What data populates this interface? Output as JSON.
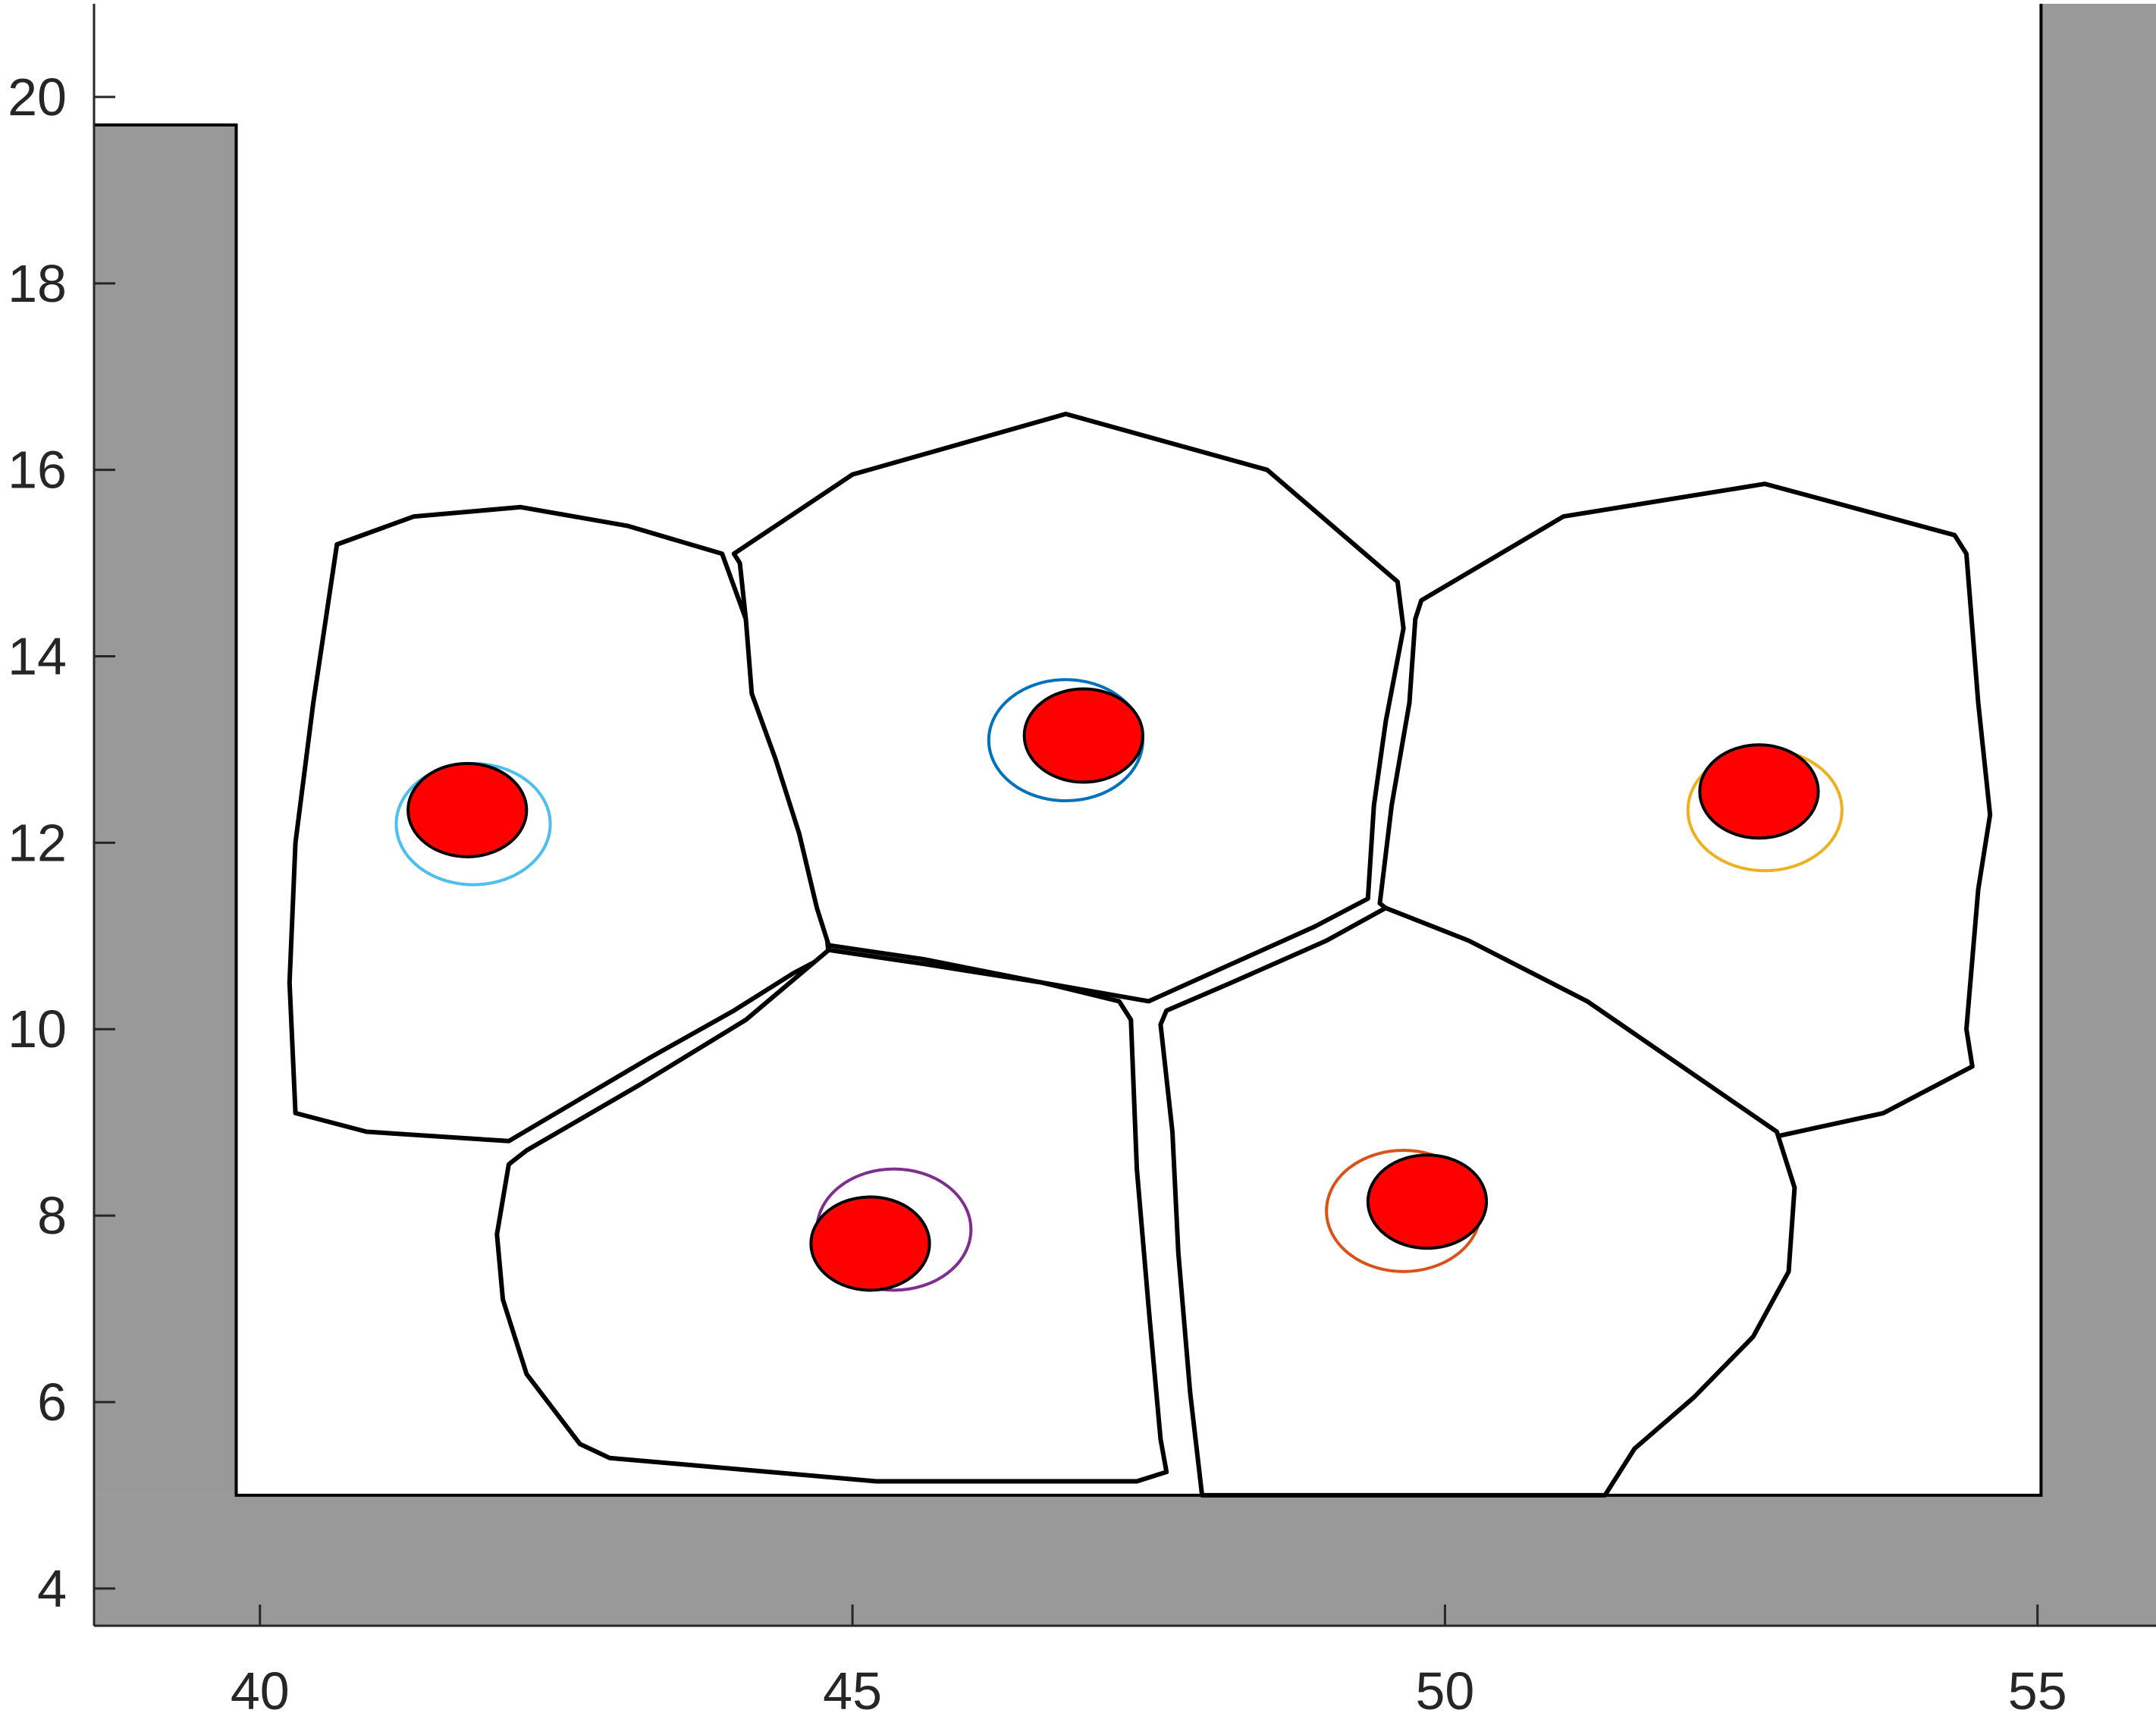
{
  "chart_data": {
    "type": "scatter",
    "title": "",
    "xlabel": "",
    "ylabel": "",
    "xlim": [
      38.6,
      56
    ],
    "ylim": [
      3.6,
      21
    ],
    "xticks": [
      40,
      45,
      50,
      55
    ],
    "xtick_labels": [
      "40",
      "45",
      "50",
      "55"
    ],
    "yticks": [
      4,
      6,
      8,
      10,
      12,
      14,
      16,
      18,
      20
    ],
    "ytick_labels": [
      "4",
      "6",
      "8",
      "10",
      "12",
      "14",
      "16",
      "18",
      "20"
    ],
    "grid": false,
    "colors": {
      "container": "#999999",
      "nucleus": "#ff0000",
      "outline": "#000000",
      "axis": "#262626"
    },
    "container": {
      "left_wall": [
        [
          38.6,
          3.6
        ],
        [
          38.6,
          19.7
        ],
        [
          39.8,
          19.7
        ],
        [
          39.8,
          5.0
        ],
        [
          38.6,
          5.0
        ]
      ],
      "right_wall": [
        [
          55.03,
          21.0
        ],
        [
          56.0,
          21.0
        ],
        [
          56.0,
          3.6
        ],
        [
          55.03,
          3.6
        ]
      ],
      "floor": [
        [
          38.6,
          3.6
        ],
        [
          56.0,
          3.6
        ],
        [
          56.0,
          5.0
        ],
        [
          38.6,
          5.0
        ]
      ]
    },
    "cells": [
      {
        "name": "top-left cell",
        "outline": [
          [
            41.3,
            15.5
          ],
          [
            42.2,
            15.6
          ],
          [
            43.1,
            15.4
          ],
          [
            43.9,
            15.1
          ],
          [
            44.1,
            14.4
          ],
          [
            44.2,
            13.6
          ],
          [
            44.4,
            12.9
          ],
          [
            44.6,
            12.1
          ],
          [
            44.75,
            11.4
          ],
          [
            44.8,
            10.8
          ],
          [
            44.5,
            10.6
          ],
          [
            44.0,
            10.2
          ],
          [
            43.3,
            9.7
          ],
          [
            42.1,
            8.8
          ],
          [
            40.9,
            8.9
          ],
          [
            40.3,
            9.1
          ],
          [
            40.25,
            10.5
          ],
          [
            40.3,
            12.0
          ],
          [
            40.45,
            13.5
          ],
          [
            40.65,
            15.2
          ]
        ],
        "nucleus": {
          "x": 41.75,
          "y": 12.35,
          "rx": 0.5,
          "ry": 0.5
        },
        "ring": {
          "x": 41.8,
          "y": 12.2,
          "rx": 0.65,
          "ry": 0.65,
          "color": "#4dbeee"
        }
      },
      {
        "name": "top-center cell",
        "outline": [
          [
            44.0,
            15.1
          ],
          [
            45.0,
            15.95
          ],
          [
            46.8,
            16.6
          ],
          [
            48.5,
            16.0
          ],
          [
            49.6,
            14.8
          ],
          [
            49.65,
            14.3
          ],
          [
            49.5,
            13.3
          ],
          [
            49.4,
            12.4
          ],
          [
            49.35,
            11.4
          ],
          [
            48.9,
            11.1
          ],
          [
            48.2,
            10.7
          ],
          [
            47.5,
            10.3
          ],
          [
            46.6,
            10.5
          ],
          [
            45.6,
            10.75
          ],
          [
            44.8,
            10.9
          ],
          [
            44.7,
            11.3
          ],
          [
            44.55,
            12.1
          ],
          [
            44.35,
            12.9
          ],
          [
            44.15,
            13.6
          ],
          [
            44.1,
            14.4
          ],
          [
            44.05,
            15.0
          ]
        ],
        "nucleus": {
          "x": 46.95,
          "y": 13.15,
          "rx": 0.5,
          "ry": 0.5
        },
        "ring": {
          "x": 46.8,
          "y": 13.1,
          "rx": 0.65,
          "ry": 0.65,
          "color": "#0072bd"
        }
      },
      {
        "name": "top-right cell",
        "outline": [
          [
            49.8,
            14.6
          ],
          [
            51.0,
            15.5
          ],
          [
            52.7,
            15.85
          ],
          [
            54.3,
            15.3
          ],
          [
            54.4,
            15.1
          ],
          [
            54.5,
            13.5
          ],
          [
            54.6,
            12.3
          ],
          [
            54.5,
            11.5
          ],
          [
            54.4,
            10.0
          ],
          [
            54.45,
            9.6
          ],
          [
            53.7,
            9.1
          ],
          [
            52.8,
            8.85
          ],
          [
            51.9,
            9.4
          ],
          [
            51.0,
            10.0
          ],
          [
            50.2,
            10.6
          ],
          [
            49.45,
            11.35
          ],
          [
            49.55,
            12.4
          ],
          [
            49.7,
            13.5
          ],
          [
            49.75,
            14.4
          ]
        ],
        "nucleus": {
          "x": 52.65,
          "y": 12.55,
          "rx": 0.5,
          "ry": 0.5
        },
        "ring": {
          "x": 52.7,
          "y": 12.35,
          "rx": 0.65,
          "ry": 0.65,
          "color": "#edb120"
        }
      },
      {
        "name": "bottom-left cell",
        "outline": [
          [
            42.25,
            8.7
          ],
          [
            43.2,
            9.4
          ],
          [
            44.1,
            10.1
          ],
          [
            44.8,
            10.85
          ],
          [
            45.6,
            10.7
          ],
          [
            46.6,
            10.5
          ],
          [
            47.25,
            10.3
          ],
          [
            47.35,
            10.1
          ],
          [
            47.4,
            8.5
          ],
          [
            47.5,
            7.0
          ],
          [
            47.6,
            5.6
          ],
          [
            47.65,
            5.25
          ],
          [
            47.4,
            5.15
          ],
          [
            45.2,
            5.15
          ],
          [
            42.95,
            5.4
          ],
          [
            42.7,
            5.55
          ],
          [
            42.25,
            6.3
          ],
          [
            42.05,
            7.1
          ],
          [
            42.0,
            7.8
          ],
          [
            42.1,
            8.55
          ]
        ],
        "nucleus": {
          "x": 45.15,
          "y": 7.7,
          "rx": 0.5,
          "ry": 0.5
        },
        "ring": {
          "x": 45.35,
          "y": 7.85,
          "rx": 0.65,
          "ry": 0.65,
          "color": "#7e2f8e"
        }
      },
      {
        "name": "bottom-right cell",
        "outline": [
          [
            47.65,
            10.2
          ],
          [
            48.2,
            10.5
          ],
          [
            49.0,
            10.95
          ],
          [
            49.5,
            11.3
          ],
          [
            50.2,
            10.95
          ],
          [
            51.2,
            10.3
          ],
          [
            52.0,
            9.6
          ],
          [
            52.8,
            8.9
          ],
          [
            52.95,
            8.3
          ],
          [
            52.9,
            7.4
          ],
          [
            52.6,
            6.7
          ],
          [
            52.1,
            6.05
          ],
          [
            51.6,
            5.5
          ],
          [
            51.35,
            5.0
          ],
          [
            47.95,
            5.0
          ],
          [
            47.85,
            6.1
          ],
          [
            47.75,
            7.6
          ],
          [
            47.7,
            8.9
          ],
          [
            47.6,
            10.05
          ]
        ],
        "nucleus": {
          "x": 49.85,
          "y": 8.15,
          "rx": 0.5,
          "ry": 0.5
        },
        "ring": {
          "x": 49.65,
          "y": 8.05,
          "rx": 0.65,
          "ry": 0.65,
          "color": "#d95319"
        }
      }
    ]
  }
}
